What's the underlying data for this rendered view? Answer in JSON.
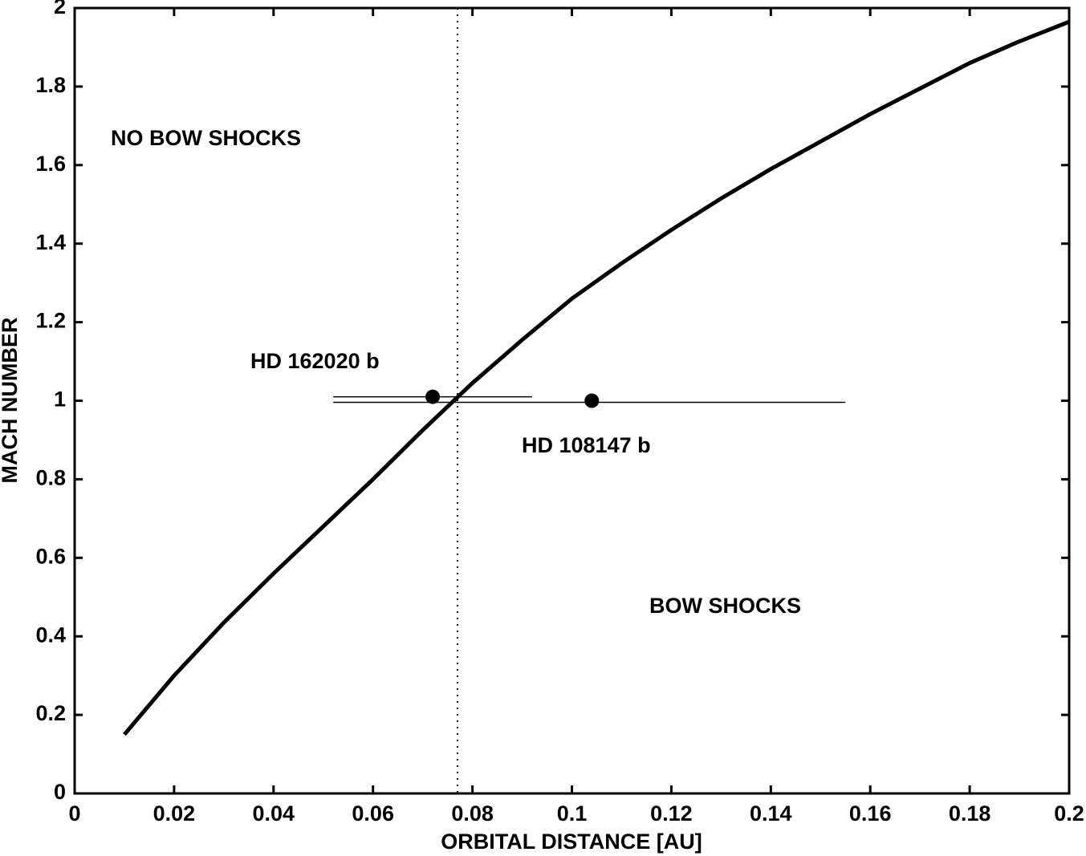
{
  "chart_data": {
    "type": "line",
    "xlabel": "ORBITAL DISTANCE [AU]",
    "ylabel": "MACH NUMBER",
    "xlim": [
      0,
      0.2
    ],
    "ylim": [
      0,
      2
    ],
    "xticks": [
      0,
      0.02,
      0.04,
      0.06,
      0.08,
      0.1,
      0.12,
      0.14,
      0.16,
      0.18,
      0.2
    ],
    "yticks": [
      0,
      0.2,
      0.4,
      0.6,
      0.8,
      1,
      1.2,
      1.4,
      1.6,
      1.8,
      2
    ],
    "series": [
      {
        "color": "#000000",
        "x": [
          0.01,
          0.02,
          0.03,
          0.04,
          0.05,
          0.06,
          0.07,
          0.08,
          0.09,
          0.1,
          0.11,
          0.12,
          0.13,
          0.14,
          0.15,
          0.16,
          0.17,
          0.18,
          0.19,
          0.2
        ],
        "values": [
          0.15,
          0.3,
          0.435,
          0.56,
          0.68,
          0.8,
          0.925,
          1.045,
          1.155,
          1.26,
          1.35,
          1.435,
          1.515,
          1.59,
          1.66,
          1.73,
          1.795,
          1.86,
          1.915,
          1.965
        ]
      }
    ],
    "vline": {
      "x": 0.077,
      "style": "dotted"
    },
    "planets": [
      {
        "name": "HD 162020 b",
        "x": 0.072,
        "y": 1.01,
        "x_min": 0.052,
        "x_max": 0.092
      },
      {
        "name": "HD 108147 b",
        "x": 0.104,
        "y": 1.0,
        "x_min": 0.052,
        "x_max": 0.155
      }
    ],
    "annotations": [
      "NO BOW SHOCKS",
      "BOW SHOCKS"
    ]
  }
}
